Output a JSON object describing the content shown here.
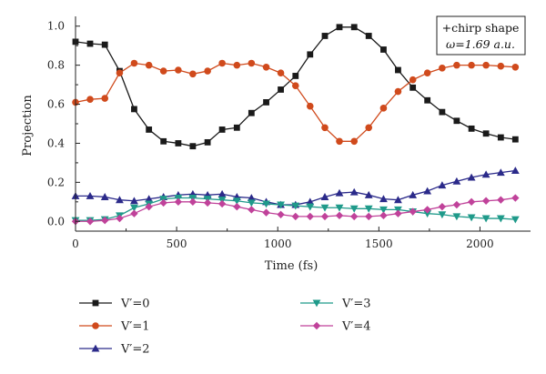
{
  "chart_data": {
    "type": "line",
    "xlabel": "Time (fs)",
    "ylabel": "Projection",
    "xlim": [
      0,
      2250
    ],
    "ylim": [
      -0.05,
      1.05
    ],
    "xticks": [
      0,
      500,
      1000,
      1500,
      2000
    ],
    "yticks": [
      0.0,
      0.2,
      0.4,
      0.6,
      0.8,
      1.0
    ],
    "xtick_labels": [
      "0",
      "500",
      "1000",
      "1500",
      "2000"
    ],
    "ytick_labels": [
      "0.0",
      "0.2",
      "0.4",
      "0.6",
      "0.8",
      "1.0"
    ],
    "grid": false,
    "legend_position": "bottom",
    "annotation": {
      "line1": "+chirp shape",
      "line2": "ω=1.69 a.u."
    },
    "x": [
      0,
      72,
      145,
      218,
      290,
      363,
      435,
      508,
      580,
      653,
      725,
      798,
      870,
      943,
      1015,
      1088,
      1160,
      1233,
      1305,
      1378,
      1450,
      1523,
      1595,
      1668,
      1740,
      1813,
      1885,
      1958,
      2030,
      2103,
      2175
    ],
    "series": [
      {
        "name": "V′=0",
        "color": "#1a1a1a",
        "marker": "square",
        "values": [
          0.92,
          0.91,
          0.905,
          0.77,
          0.575,
          0.47,
          0.41,
          0.4,
          0.385,
          0.405,
          0.47,
          0.48,
          0.555,
          0.61,
          0.675,
          0.745,
          0.855,
          0.95,
          0.995,
          0.995,
          0.95,
          0.88,
          0.775,
          0.685,
          0.62,
          0.56,
          0.515,
          0.475,
          0.45,
          0.43,
          0.42
        ]
      },
      {
        "name": "V′=1",
        "color": "#d04a1c",
        "marker": "circle",
        "values": [
          0.61,
          0.625,
          0.63,
          0.76,
          0.81,
          0.8,
          0.77,
          0.775,
          0.755,
          0.77,
          0.81,
          0.8,
          0.81,
          0.79,
          0.76,
          0.695,
          0.59,
          0.48,
          0.41,
          0.41,
          0.48,
          0.58,
          0.665,
          0.725,
          0.76,
          0.785,
          0.8,
          0.8,
          0.8,
          0.795,
          0.79
        ]
      },
      {
        "name": "V′=2",
        "color": "#2b2a8a",
        "marker": "triangle-up",
        "values": [
          0.13,
          0.13,
          0.125,
          0.11,
          0.105,
          0.115,
          0.125,
          0.135,
          0.14,
          0.135,
          0.14,
          0.125,
          0.12,
          0.1,
          0.085,
          0.085,
          0.1,
          0.125,
          0.145,
          0.15,
          0.135,
          0.115,
          0.11,
          0.135,
          0.155,
          0.185,
          0.205,
          0.225,
          0.24,
          0.25,
          0.26
        ]
      },
      {
        "name": "V′=3",
        "color": "#1f9a8a",
        "marker": "triangle-down",
        "values": [
          0.005,
          0.005,
          0.01,
          0.03,
          0.07,
          0.09,
          0.115,
          0.12,
          0.12,
          0.115,
          0.11,
          0.105,
          0.095,
          0.09,
          0.085,
          0.08,
          0.075,
          0.07,
          0.07,
          0.065,
          0.065,
          0.06,
          0.06,
          0.05,
          0.04,
          0.035,
          0.025,
          0.02,
          0.015,
          0.015,
          0.01
        ]
      },
      {
        "name": "V′=4",
        "color": "#c0429a",
        "marker": "diamond",
        "values": [
          0.0,
          0.0,
          0.005,
          0.015,
          0.04,
          0.075,
          0.095,
          0.1,
          0.1,
          0.095,
          0.09,
          0.075,
          0.06,
          0.045,
          0.035,
          0.025,
          0.025,
          0.025,
          0.03,
          0.025,
          0.025,
          0.03,
          0.04,
          0.05,
          0.06,
          0.075,
          0.085,
          0.1,
          0.105,
          0.11,
          0.12
        ]
      }
    ]
  }
}
